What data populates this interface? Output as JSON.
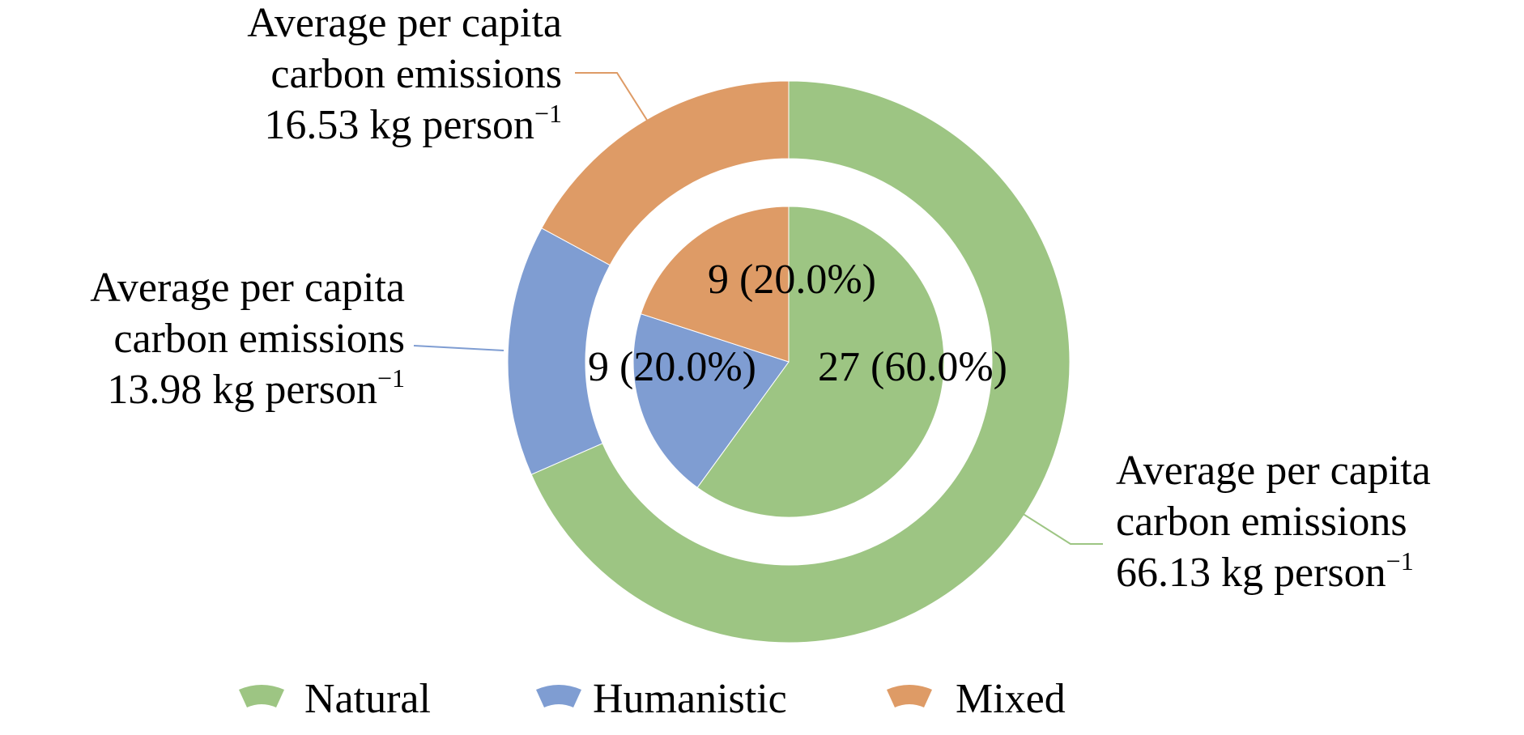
{
  "chart_data": {
    "type": "pie",
    "subtype": "nested-donut",
    "categories": [
      "Natural",
      "Humanistic",
      "Mixed"
    ],
    "colors": {
      "Natural": "#9DC583",
      "Humanistic": "#7F9DD2",
      "Mixed": "#DE9B66"
    },
    "inner": {
      "values": [
        27,
        9,
        9
      ],
      "labels": [
        "27 (60.0%)",
        "9 (20.0%)",
        "9 (20.0%)"
      ]
    },
    "outer": {
      "values": [
        66.13,
        13.98,
        16.53
      ],
      "annotations": [
        {
          "category": "Natural",
          "lines": [
            "Average per capita",
            "carbon emissions",
            "66.13 kg person"
          ],
          "superscript": "−1"
        },
        {
          "category": "Humanistic",
          "lines": [
            "Average per capita",
            "carbon emissions",
            "13.98 kg person"
          ],
          "superscript": "−1"
        },
        {
          "category": "Mixed",
          "lines": [
            "Average per capita",
            "carbon emissions",
            "16.53 kg person"
          ],
          "superscript": "−1"
        }
      ]
    },
    "legend": {
      "placement": "bottom",
      "entries": [
        "Natural",
        "Humanistic",
        "Mixed"
      ]
    }
  }
}
